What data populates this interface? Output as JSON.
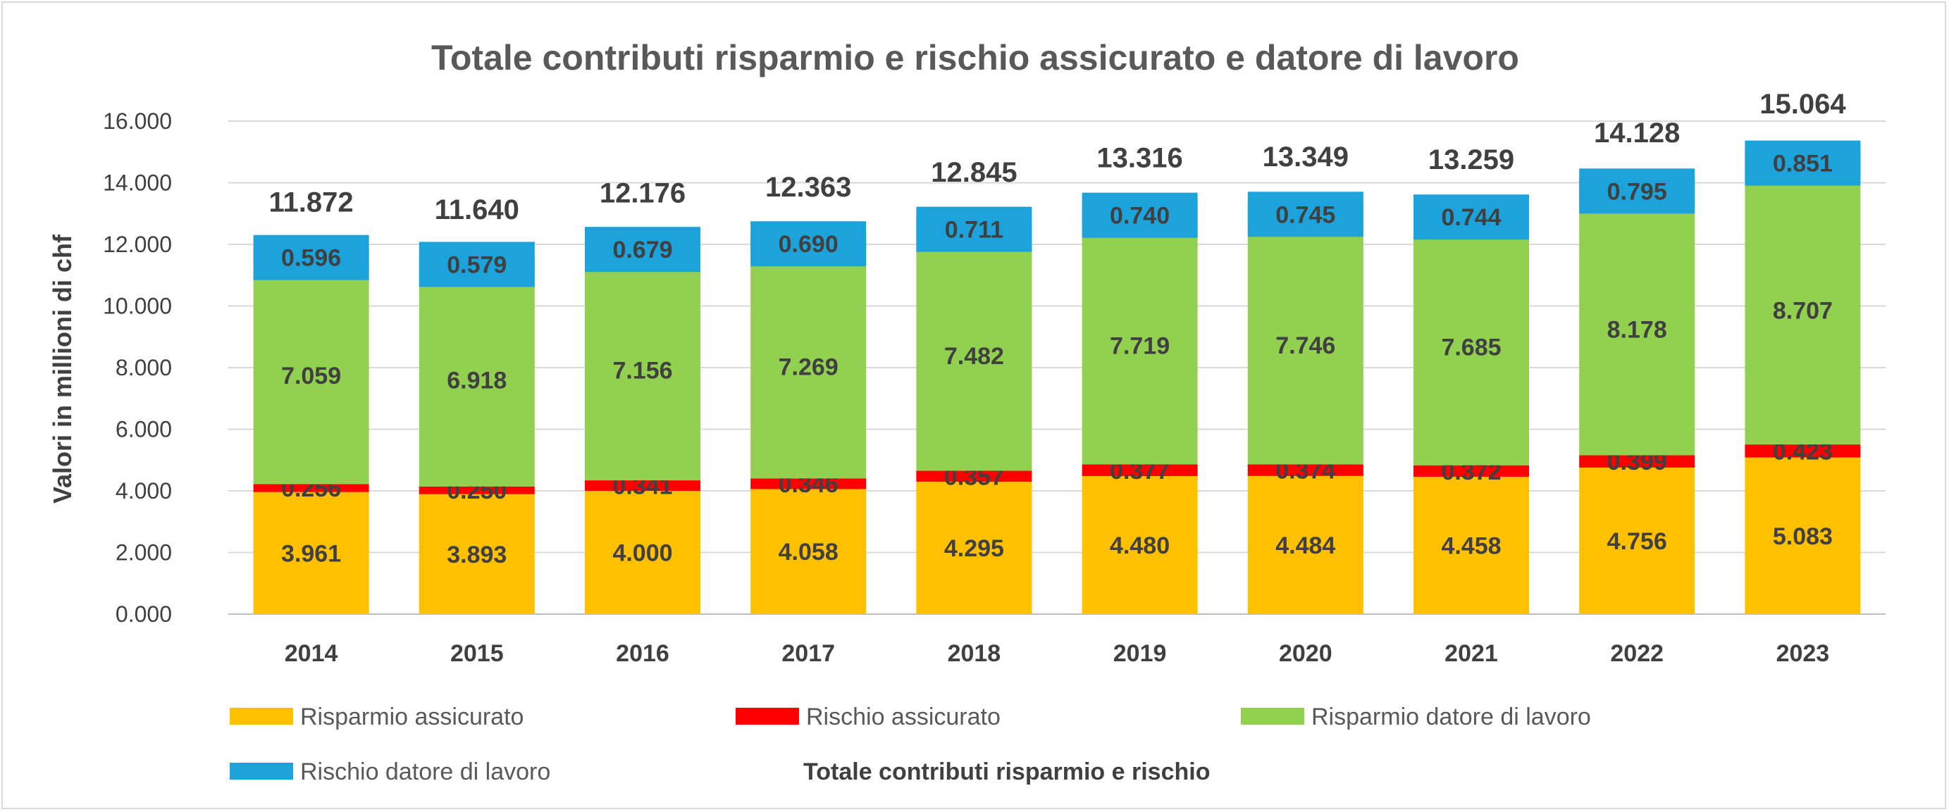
{
  "chart_data": {
    "type": "bar",
    "stacked": true,
    "title": "Totale contributi risparmio e rischio assicurato e datore di lavoro",
    "xlabel": "",
    "ylabel": "Valori in millioni di chf",
    "ylim": [
      0,
      16
    ],
    "yticks": [
      "0.000",
      "2.000",
      "4.000",
      "6.000",
      "8.000",
      "10.000",
      "12.000",
      "14.000",
      "16.000"
    ],
    "categories": [
      "2014",
      "2015",
      "2016",
      "2017",
      "2018",
      "2019",
      "2020",
      "2021",
      "2022",
      "2023"
    ],
    "series": [
      {
        "name": "Risparmio assicurato",
        "color": "#ffc000",
        "values": [
          3.961,
          3.893,
          4.0,
          4.058,
          4.295,
          4.48,
          4.484,
          4.458,
          4.756,
          5.083
        ],
        "labels": [
          "3.961",
          "3.893",
          "4.000",
          "4.058",
          "4.295",
          "4.480",
          "4.484",
          "4.458",
          "4.756",
          "5.083"
        ]
      },
      {
        "name": "Rischio assicurato",
        "color": "#ff0000",
        "values": [
          0.256,
          0.25,
          0.341,
          0.346,
          0.357,
          0.377,
          0.374,
          0.372,
          0.399,
          0.423
        ],
        "labels": [
          "0.256",
          "0.250",
          "0.341",
          "0.346",
          "0.357",
          "0.377",
          "0.374",
          "0.372",
          "0.399",
          "0.423"
        ]
      },
      {
        "name": "Risparmio datore di lavoro",
        "color": "#92d050",
        "values": [
          7.059,
          6.918,
          7.156,
          7.269,
          7.482,
          7.719,
          7.746,
          7.685,
          8.178,
          8.707
        ],
        "labels": [
          "7.059",
          "6.918",
          "7.156",
          "7.269",
          "7.482",
          "7.719",
          "7.746",
          "7.685",
          "8.178",
          "8.707"
        ]
      },
      {
        "name": "Rischio datore di lavoro",
        "color": "#1ca3dc",
        "values": [
          0.596,
          0.579,
          0.679,
          0.69,
          0.711,
          0.74,
          0.745,
          0.744,
          0.795,
          0.851
        ],
        "labels": [
          "0.596",
          "0.579",
          "0.679",
          "0.690",
          "0.711",
          "0.740",
          "0.745",
          "0.744",
          "0.795",
          "0.851"
        ]
      }
    ],
    "totals": {
      "name": "Totale contributi risparmio e rischio",
      "values": [
        11.872,
        11.64,
        12.176,
        12.363,
        12.845,
        13.316,
        13.349,
        13.259,
        14.128,
        15.064
      ],
      "labels": [
        "11.872",
        "11.640",
        "12.176",
        "12.363",
        "12.845",
        "13.316",
        "13.349",
        "13.259",
        "14.128",
        "15.064"
      ]
    },
    "grid": true,
    "legend_position": "bottom"
  },
  "colors": {
    "gridline": "#d9d9d9",
    "axis": "#bfbfbf"
  }
}
